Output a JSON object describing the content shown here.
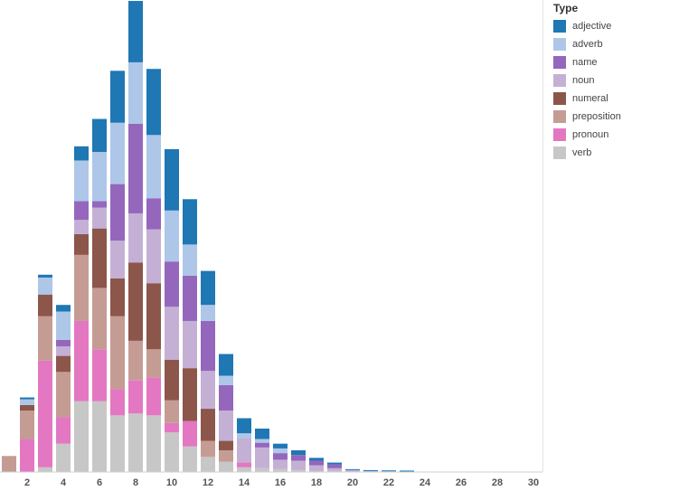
{
  "chart_data": {
    "type": "bar",
    "stacked": true,
    "x": [
      1,
      2,
      3,
      4,
      5,
      6,
      7,
      8,
      9,
      10,
      11,
      12,
      13,
      14,
      15,
      16,
      17,
      18,
      19,
      20,
      21,
      22,
      23
    ],
    "xlim": [
      0.5,
      30.5
    ],
    "ylim": [
      0,
      500
    ],
    "xticks": [
      "2",
      "4",
      "6",
      "8",
      "10",
      "12",
      "14",
      "16",
      "18",
      "20",
      "22",
      "24",
      "26",
      "28",
      "30"
    ],
    "xtick_values": [
      2,
      4,
      6,
      8,
      10,
      12,
      14,
      16,
      18,
      20,
      22,
      24,
      26,
      28,
      30
    ],
    "grid": false,
    "legend_position": "right",
    "legend_title": "Type",
    "series": [
      {
        "name": "verb",
        "color": "#c7c7c7",
        "values": [
          0,
          0,
          5,
          30,
          75,
          75,
          60,
          62,
          60,
          42,
          27,
          16,
          11,
          5,
          4,
          3,
          2,
          1,
          1,
          0.5,
          0.3,
          0.2,
          0.2
        ]
      },
      {
        "name": "pronoun",
        "color": "#e377c2",
        "values": [
          0,
          35,
          113,
          28,
          85,
          55,
          28,
          35,
          40,
          10,
          27,
          0,
          0,
          5,
          0,
          0,
          0,
          0,
          0,
          0,
          0,
          0,
          0
        ]
      },
      {
        "name": "preposition",
        "color": "#c49c94",
        "values": [
          17,
          30,
          47,
          48,
          70,
          65,
          77,
          42,
          30,
          24,
          0,
          17,
          12,
          0,
          0,
          0,
          0,
          0,
          0,
          0,
          0,
          0,
          0
        ]
      },
      {
        "name": "numeral",
        "color": "#8c564b",
        "values": [
          0,
          6,
          23,
          17,
          22,
          63,
          40,
          83,
          70,
          43,
          56,
          34,
          10,
          0,
          0,
          0,
          0,
          0,
          0,
          0,
          0,
          0,
          0
        ]
      },
      {
        "name": "noun",
        "color": "#c5b0d5",
        "values": [
          0,
          0,
          0,
          10,
          15,
          22,
          40,
          52,
          57,
          56,
          50,
          40,
          32,
          26,
          22,
          10,
          10,
          6,
          3,
          1.5,
          0.7,
          0.5,
          0.3
        ]
      },
      {
        "name": "name",
        "color": "#9467bd",
        "values": [
          0,
          0,
          0,
          7,
          20,
          7,
          60,
          95,
          33,
          48,
          48,
          53,
          27,
          0,
          5,
          7,
          6,
          5,
          4,
          0,
          0,
          0,
          0
        ]
      },
      {
        "name": "adverb",
        "color": "#aec7e8",
        "values": [
          0,
          6,
          18,
          30,
          43,
          52,
          65,
          65,
          67,
          54,
          33,
          17,
          10,
          5,
          4,
          5,
          0,
          0,
          0,
          0,
          0,
          0,
          0
        ]
      },
      {
        "name": "adjective",
        "color": "#1f77b4",
        "values": [
          0,
          2,
          3,
          7,
          15,
          35,
          55,
          65,
          70,
          65,
          48,
          36,
          23,
          16,
          11,
          5,
          5,
          3,
          2,
          1,
          1,
          1,
          1
        ]
      }
    ]
  },
  "legend": {
    "title": "Type",
    "items": [
      {
        "label": "adjective",
        "color": "#1f77b4"
      },
      {
        "label": "adverb",
        "color": "#aec7e8"
      },
      {
        "label": "name",
        "color": "#9467bd"
      },
      {
        "label": "noun",
        "color": "#c5b0d5"
      },
      {
        "label": "numeral",
        "color": "#8c564b"
      },
      {
        "label": "preposition",
        "color": "#c49c94"
      },
      {
        "label": "pronoun",
        "color": "#e377c2"
      },
      {
        "label": "verb",
        "color": "#c7c7c7"
      }
    ]
  }
}
